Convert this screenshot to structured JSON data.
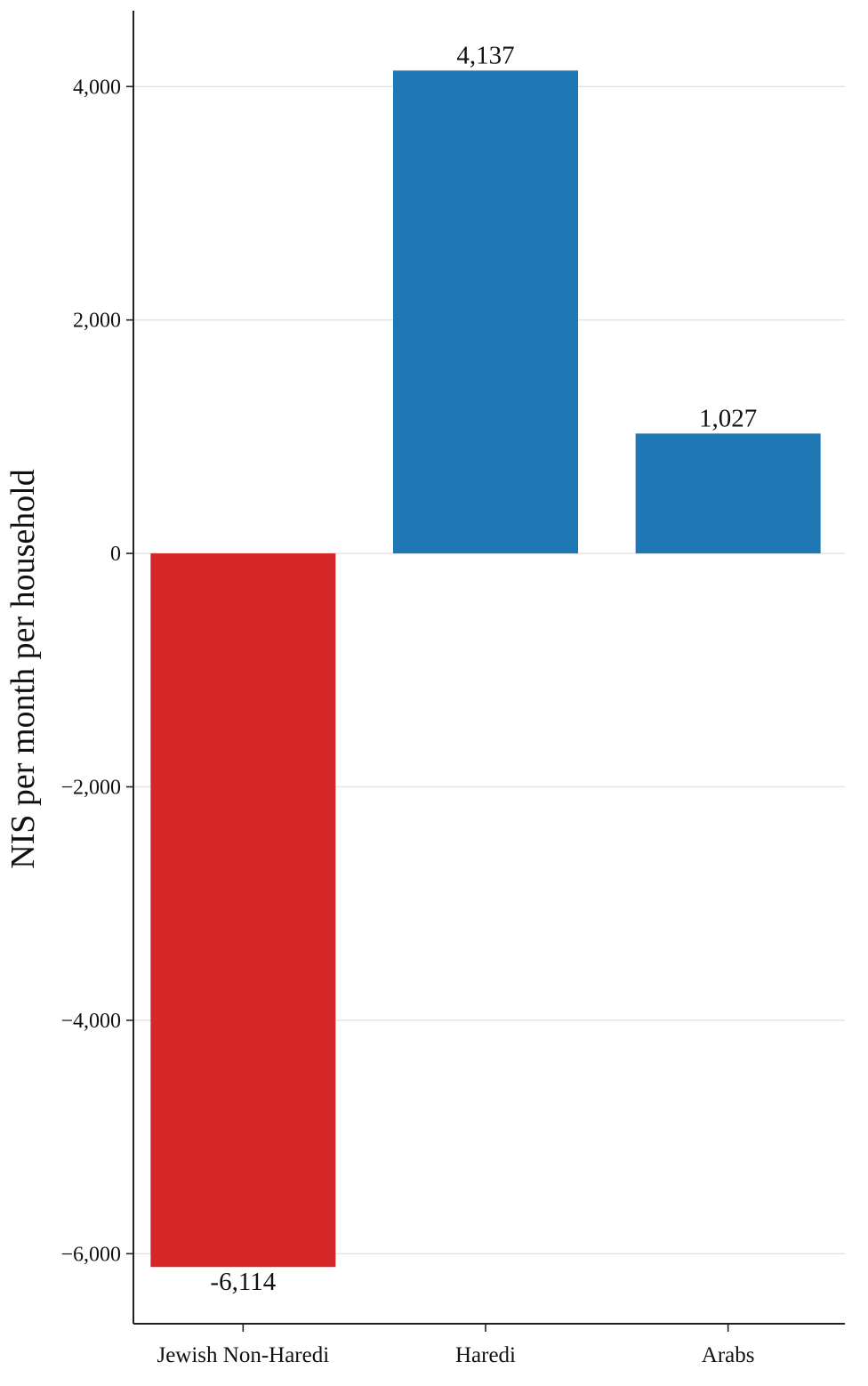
{
  "chart_data": {
    "type": "bar",
    "title": "",
    "xlabel": "",
    "ylabel": "NIS per month per household",
    "categories": [
      "Jewish Non-Haredi",
      "Haredi",
      "Arabs"
    ],
    "values": [
      -6114,
      4137,
      1027
    ],
    "value_labels": [
      "-6,114",
      "4,137",
      "1,027"
    ],
    "ylim": [
      -6600,
      4650
    ],
    "yticks": [
      -6000,
      -4000,
      -2000,
      0,
      2000,
      4000
    ],
    "ytick_labels": [
      "−6,000",
      "−4,000",
      "−2,000",
      "0",
      "2,000",
      "4,000"
    ],
    "grid": true,
    "legend": "none",
    "colors": {
      "negative": "#d62728",
      "positive": "#1f77b4",
      "grid": "#e3e3e3",
      "axis": "#222222"
    }
  }
}
